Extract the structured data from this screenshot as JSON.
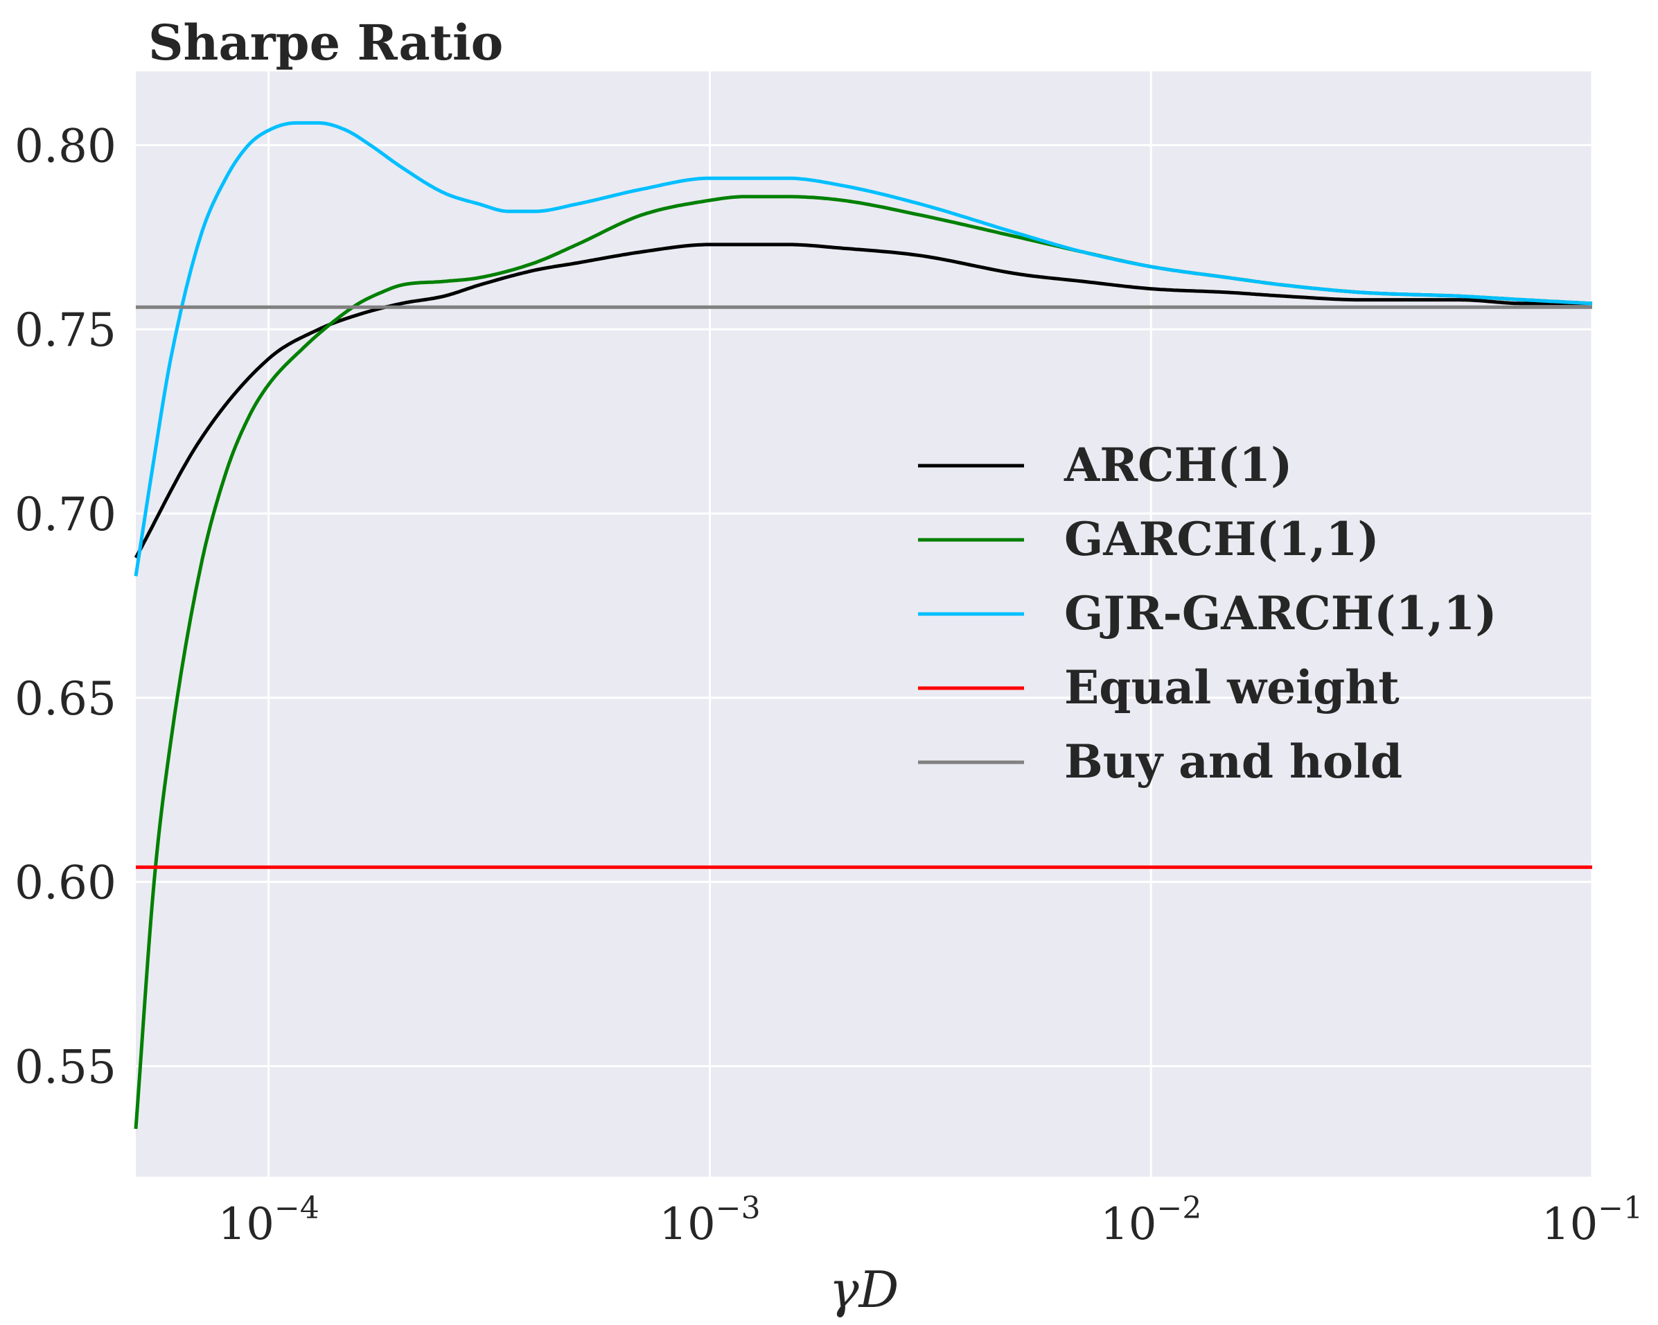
{
  "chart_data": {
    "type": "line",
    "title": "Sharpe Ratio",
    "xlabel": "γD",
    "ylabel": "",
    "xscale": "log",
    "xlim": [
      5e-05,
      0.1
    ],
    "ylim": [
      0.52,
      0.82
    ],
    "grid": true,
    "legend_position": "center-right",
    "x_ticks": [
      {
        "value": 0.0001,
        "base": "10",
        "exp": "−4"
      },
      {
        "value": 0.001,
        "base": "10",
        "exp": "−3"
      },
      {
        "value": 0.01,
        "base": "10",
        "exp": "−2"
      },
      {
        "value": 0.1,
        "base": "10",
        "exp": "−1"
      }
    ],
    "y_ticks": [
      {
        "value": 0.55,
        "label": "0.55"
      },
      {
        "value": 0.6,
        "label": "0.60"
      },
      {
        "value": 0.65,
        "label": "0.65"
      },
      {
        "value": 0.7,
        "label": "0.70"
      },
      {
        "value": 0.75,
        "label": "0.75"
      },
      {
        "value": 0.8,
        "label": "0.80"
      }
    ],
    "series": [
      {
        "name": "ARCH(1)",
        "color": "#000000",
        "x": [
          5e-05,
          7e-05,
          0.0001,
          0.00013,
          0.00016,
          0.0002,
          0.00025,
          0.0003,
          0.0004,
          0.0005,
          0.0007,
          0.001,
          0.0012,
          0.0015,
          0.002,
          0.003,
          0.005,
          0.007,
          0.01,
          0.015,
          0.02,
          0.03,
          0.05,
          0.07,
          0.1
        ],
        "y": [
          0.688,
          0.72,
          0.742,
          0.75,
          0.754,
          0.757,
          0.759,
          0.762,
          0.766,
          0.768,
          0.771,
          0.773,
          0.773,
          0.773,
          0.772,
          0.77,
          0.765,
          0.763,
          0.761,
          0.76,
          0.759,
          0.758,
          0.758,
          0.757,
          0.757
        ]
      },
      {
        "name": "GARCH(1,1)",
        "color": "#008000",
        "x": [
          5e-05,
          5.5e-05,
          6e-05,
          7e-05,
          8e-05,
          9e-05,
          0.0001,
          0.00012,
          0.00014,
          0.00016,
          0.00018,
          0.0002,
          0.00025,
          0.0003,
          0.0004,
          0.0005,
          0.0007,
          0.001,
          0.0012,
          0.0015,
          0.002,
          0.003,
          0.005,
          0.007,
          0.01,
          0.015,
          0.02,
          0.03,
          0.05,
          0.07,
          0.1
        ],
        "y": [
          0.533,
          0.6,
          0.638,
          0.685,
          0.711,
          0.726,
          0.735,
          0.745,
          0.752,
          0.757,
          0.76,
          0.762,
          0.763,
          0.764,
          0.768,
          0.773,
          0.781,
          0.785,
          0.786,
          0.786,
          0.785,
          0.781,
          0.775,
          0.771,
          0.767,
          0.764,
          0.762,
          0.76,
          0.759,
          0.758,
          0.757
        ]
      },
      {
        "name": "GJR-GARCH(1,1)",
        "color": "#00bfff",
        "x": [
          5e-05,
          5.5e-05,
          6e-05,
          7e-05,
          8e-05,
          9e-05,
          0.0001,
          0.000115,
          0.00013,
          0.00015,
          0.00017,
          0.0002,
          0.00025,
          0.0003,
          0.00035,
          0.0004,
          0.0005,
          0.0007,
          0.001,
          0.0012,
          0.0015,
          0.002,
          0.003,
          0.005,
          0.007,
          0.01,
          0.015,
          0.02,
          0.03,
          0.05,
          0.07,
          0.1
        ],
        "y": [
          0.683,
          0.715,
          0.742,
          0.775,
          0.791,
          0.8,
          0.804,
          0.806,
          0.806,
          0.804,
          0.8,
          0.794,
          0.787,
          0.784,
          0.782,
          0.782,
          0.784,
          0.788,
          0.791,
          0.791,
          0.791,
          0.789,
          0.784,
          0.776,
          0.771,
          0.767,
          0.764,
          0.762,
          0.76,
          0.759,
          0.758,
          0.757
        ]
      },
      {
        "name": "Equal weight",
        "color": "#ff0000",
        "x": [
          5e-05,
          0.1
        ],
        "y": [
          0.604,
          0.604
        ]
      },
      {
        "name": "Buy and hold",
        "color": "#808080",
        "x": [
          5e-05,
          0.1
        ],
        "y": [
          0.756,
          0.756
        ]
      }
    ]
  }
}
